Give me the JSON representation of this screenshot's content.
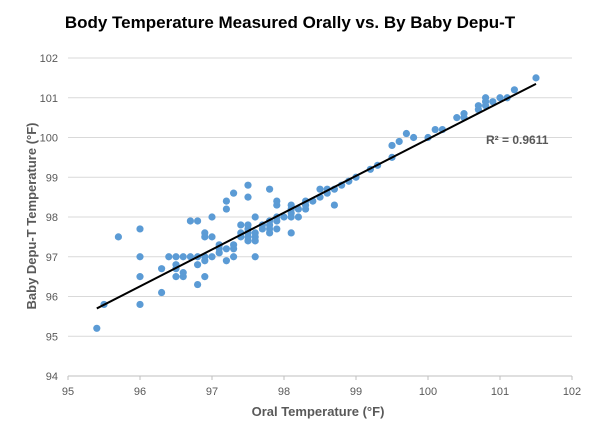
{
  "chart_data": {
    "type": "scatter",
    "title": "Body Temperature Measured Orally vs. By Baby Depu-T",
    "xlabel": "Oral Temperature (°F)",
    "ylabel": "Baby Depu-T Temperature (°F)",
    "xlim": [
      95,
      102
    ],
    "ylim": [
      94,
      102
    ],
    "xticks": [
      "95",
      "96",
      "97",
      "98",
      "99",
      "100",
      "101",
      "102"
    ],
    "yticks": [
      "94",
      "95",
      "96",
      "97",
      "98",
      "99",
      "100",
      "101",
      "102"
    ],
    "grid": "horizontal",
    "legend": "none",
    "marker_color": "#5B9BD5",
    "trendline": {
      "type": "linear",
      "from": [
        95.4,
        95.7
      ],
      "to": [
        101.5,
        101.35
      ],
      "color": "#000000",
      "r_squared_label": "R² = 0.9611"
    },
    "points": [
      [
        95.4,
        95.2
      ],
      [
        95.5,
        95.8
      ],
      [
        95.7,
        97.5
      ],
      [
        96.0,
        95.8
      ],
      [
        96.0,
        96.5
      ],
      [
        96.0,
        97.0
      ],
      [
        96.0,
        97.7
      ],
      [
        96.3,
        96.1
      ],
      [
        96.3,
        96.7
      ],
      [
        96.4,
        97.0
      ],
      [
        96.5,
        96.5
      ],
      [
        96.5,
        96.7
      ],
      [
        96.5,
        96.8
      ],
      [
        96.5,
        97.0
      ],
      [
        96.6,
        96.5
      ],
      [
        96.6,
        96.6
      ],
      [
        96.6,
        97.0
      ],
      [
        96.7,
        97.0
      ],
      [
        96.7,
        97.9
      ],
      [
        96.8,
        96.3
      ],
      [
        96.8,
        96.8
      ],
      [
        96.8,
        97.0
      ],
      [
        96.8,
        97.9
      ],
      [
        96.9,
        96.5
      ],
      [
        96.9,
        96.9
      ],
      [
        96.9,
        97.0
      ],
      [
        96.9,
        97.5
      ],
      [
        96.9,
        97.6
      ],
      [
        97.0,
        97.0
      ],
      [
        97.0,
        97.5
      ],
      [
        97.0,
        98.0
      ],
      [
        97.1,
        97.1
      ],
      [
        97.1,
        97.2
      ],
      [
        97.1,
        97.3
      ],
      [
        97.2,
        96.9
      ],
      [
        97.2,
        97.2
      ],
      [
        97.2,
        98.2
      ],
      [
        97.2,
        98.4
      ],
      [
        97.3,
        97.0
      ],
      [
        97.3,
        97.2
      ],
      [
        97.3,
        97.3
      ],
      [
        97.3,
        98.6
      ],
      [
        97.4,
        97.5
      ],
      [
        97.4,
        97.6
      ],
      [
        97.4,
        97.8
      ],
      [
        97.5,
        97.4
      ],
      [
        97.5,
        97.5
      ],
      [
        97.5,
        97.6
      ],
      [
        97.5,
        97.7
      ],
      [
        97.5,
        97.8
      ],
      [
        97.5,
        98.5
      ],
      [
        97.5,
        98.8
      ],
      [
        97.6,
        97.0
      ],
      [
        97.6,
        97.4
      ],
      [
        97.6,
        97.5
      ],
      [
        97.6,
        97.6
      ],
      [
        97.6,
        98.0
      ],
      [
        97.7,
        97.7
      ],
      [
        97.7,
        97.8
      ],
      [
        97.8,
        97.6
      ],
      [
        97.8,
        97.7
      ],
      [
        97.8,
        97.8
      ],
      [
        97.8,
        97.9
      ],
      [
        97.8,
        98.7
      ],
      [
        97.9,
        97.7
      ],
      [
        97.9,
        97.9
      ],
      [
        97.9,
        98.0
      ],
      [
        97.9,
        98.3
      ],
      [
        97.9,
        98.4
      ],
      [
        98.0,
        98.0
      ],
      [
        98.1,
        97.6
      ],
      [
        98.1,
        98.0
      ],
      [
        98.1,
        98.1
      ],
      [
        98.1,
        98.2
      ],
      [
        98.1,
        98.3
      ],
      [
        98.2,
        98.0
      ],
      [
        98.2,
        98.2
      ],
      [
        98.3,
        98.2
      ],
      [
        98.3,
        98.3
      ],
      [
        98.3,
        98.4
      ],
      [
        98.4,
        98.4
      ],
      [
        98.5,
        98.5
      ],
      [
        98.5,
        98.7
      ],
      [
        98.6,
        98.6
      ],
      [
        98.6,
        98.7
      ],
      [
        98.7,
        98.3
      ],
      [
        98.7,
        98.7
      ],
      [
        98.8,
        98.8
      ],
      [
        98.9,
        98.9
      ],
      [
        99.0,
        99.0
      ],
      [
        99.2,
        99.2
      ],
      [
        99.3,
        99.3
      ],
      [
        99.5,
        99.5
      ],
      [
        99.5,
        99.8
      ],
      [
        99.6,
        99.9
      ],
      [
        99.7,
        100.1
      ],
      [
        99.8,
        100.0
      ],
      [
        100.0,
        100.0
      ],
      [
        100.1,
        100.2
      ],
      [
        100.2,
        100.2
      ],
      [
        100.4,
        100.5
      ],
      [
        100.5,
        100.5
      ],
      [
        100.5,
        100.6
      ],
      [
        100.7,
        100.7
      ],
      [
        100.7,
        100.8
      ],
      [
        100.8,
        100.8
      ],
      [
        100.8,
        100.9
      ],
      [
        100.8,
        101.0
      ],
      [
        100.9,
        100.9
      ],
      [
        101.0,
        101.0
      ],
      [
        101.1,
        101.0
      ],
      [
        101.2,
        101.2
      ],
      [
        101.5,
        101.5
      ]
    ]
  }
}
